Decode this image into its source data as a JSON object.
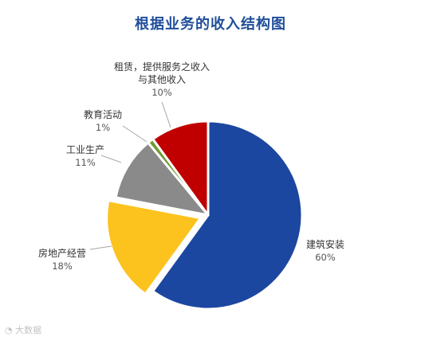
{
  "chart_data": {
    "type": "pie",
    "title": "根据业务的收入结构图",
    "slices": [
      {
        "label_lines": [
          "建筑安装"
        ],
        "pct_text": "60%",
        "value": 60,
        "color": "#1c47a0"
      },
      {
        "label_lines": [
          "房地产经营"
        ],
        "pct_text": "18%",
        "value": 18,
        "color": "#fcc21e"
      },
      {
        "label_lines": [
          "工业生产"
        ],
        "pct_text": "11%",
        "value": 11,
        "color": "#8a8a8a"
      },
      {
        "label_lines": [
          "教育活动"
        ],
        "pct_text": "1%",
        "value": 1,
        "color": "#6f9a32"
      },
      {
        "label_lines": [
          "租赁，提供服务之收入",
          "与其他收入"
        ],
        "pct_text": "10%",
        "value": 10,
        "color": "#c00000"
      }
    ]
  },
  "watermark": "大数据",
  "watermark_icon": "logo-icon"
}
